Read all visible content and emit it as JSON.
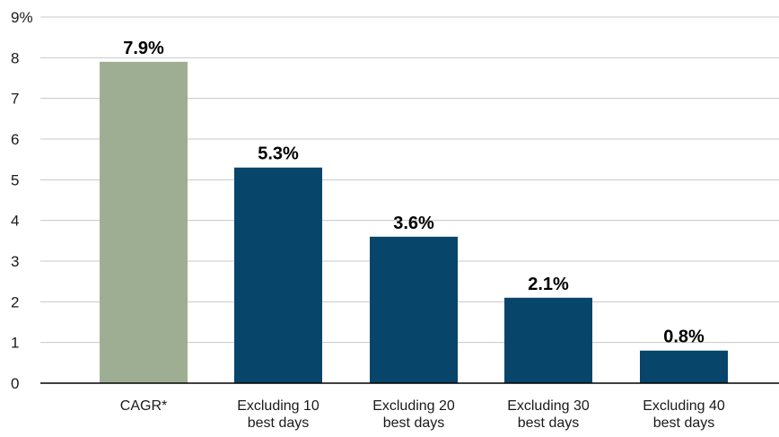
{
  "chart_data": {
    "type": "bar",
    "title": "",
    "xlabel": "",
    "ylabel": "",
    "ylim": [
      0,
      9
    ],
    "y_ticks": [
      "0",
      "1",
      "2",
      "3",
      "4",
      "5",
      "6",
      "7",
      "8",
      "9%"
    ],
    "grid": true,
    "legend": "none",
    "categories": [
      [
        "CAGR*"
      ],
      [
        "Excluding 10",
        "best days"
      ],
      [
        "Excluding 20",
        "best days"
      ],
      [
        "Excluding 30",
        "best days"
      ],
      [
        "Excluding 40",
        "best days"
      ]
    ],
    "values": [
      7.9,
      5.3,
      3.6,
      2.1,
      0.8
    ],
    "data_labels": [
      "7.9%",
      "5.3%",
      "3.6%",
      "2.1%",
      "0.8%"
    ],
    "colors": [
      "#9eae93",
      "#07456a",
      "#07456a",
      "#07456a",
      "#07456a"
    ]
  }
}
